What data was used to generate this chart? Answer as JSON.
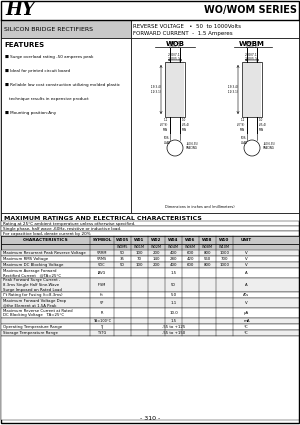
{
  "title": "WO/WOM SERIES",
  "company": "HY",
  "subtitle1": "SILICON BRIDGE RECTIFIERS",
  "subtitle2": "REVERSE VOLTAGE   •  50  to 1000Volts",
  "subtitle3": "FORWARD CURRENT  -  1.5 Amperes",
  "features_title": "FEATURES",
  "features": [
    "Surge overload rating -50 amperes peak",
    "Ideal for printed circuit board",
    "Reliable low cost construction utilizing molded plastic",
    "   technique results in expensive product",
    "Mounting position:Any"
  ],
  "max_ratings_title": "MAXIMUM RATINGS AND ELECTRICAL CHARACTERISTICS",
  "max_ratings_note1": "Rating at 25°C ambient temperature unless otherwise specified.",
  "max_ratings_note2": "Single phase, half wave ,60Hz, resistive or inductive load.",
  "max_ratings_note3": "For capacitive load, derate current by 20%",
  "table_headers_row1": [
    "CHARACTERISTICS",
    "SYMBOL",
    "W005",
    "W01",
    "W02",
    "W04",
    "W06",
    "W08",
    "W10",
    "UNIT"
  ],
  "table_headers_row2": [
    "",
    "",
    "WOM5",
    "W01M",
    "W02M",
    "W04M",
    "W06M",
    "W08M",
    "W10M",
    ""
  ],
  "rows": [
    [
      "Maximum Recurrent Peak Reverse Voltage",
      "VRRM",
      "50",
      "100",
      "200",
      "400",
      "600",
      "800",
      "1000",
      "V"
    ],
    [
      "Maximum RMS Voltage",
      "VRMS",
      "35",
      "70",
      "140",
      "280",
      "420",
      "560",
      "700",
      "V"
    ],
    [
      "Maximum DC Blocking Voltage",
      "VDC",
      "50",
      "100",
      "200",
      "400",
      "600",
      "800",
      "1000",
      "V"
    ],
    [
      "Maximum Average Forward\nRectified Current   @TA=25°C",
      "IAVG",
      "",
      "",
      "",
      "1.5",
      "",
      "",
      "",
      "A"
    ],
    [
      "Peak Forward Surge Current ,\n8.3ms Single Half Sine-Wave\nSurge Imposed on Rated Load",
      "IFSM",
      "",
      "",
      "",
      "50",
      "",
      "",
      "",
      "A"
    ],
    [
      "I²t Rating for Fusing (t=8.3ms)",
      "I²t",
      "",
      "",
      "",
      "5.0",
      "",
      "",
      "",
      "A²s"
    ],
    [
      "Maximum Forward Voltage Drop\n@the Element at 1.5A Peak",
      "VF",
      "",
      "",
      "",
      "1.1",
      "",
      "",
      "",
      "V"
    ],
    [
      "Maximum Reverse Current at Rated\nDC Blocking Voltage   TA=25°C",
      "IR",
      "",
      "",
      "",
      "10.0",
      "",
      "",
      "",
      "μA"
    ],
    [
      "",
      "TA=100°C",
      "",
      "",
      "",
      "1.5",
      "",
      "",
      "",
      "mA"
    ],
    [
      "Operating Temperature Range",
      "TJ",
      "",
      "",
      "",
      "-55 to +125",
      "",
      "",
      "",
      "°C"
    ],
    [
      "Storage Temperature Range",
      "TSTG",
      "",
      "",
      "",
      "-55 to +150",
      "",
      "",
      "",
      "°C"
    ]
  ],
  "page_num": "- 310 -",
  "bg_color": "#ffffff",
  "header_bg": "#c8c8c8",
  "dim_note": "Dimensions in inches and (millimeters)"
}
